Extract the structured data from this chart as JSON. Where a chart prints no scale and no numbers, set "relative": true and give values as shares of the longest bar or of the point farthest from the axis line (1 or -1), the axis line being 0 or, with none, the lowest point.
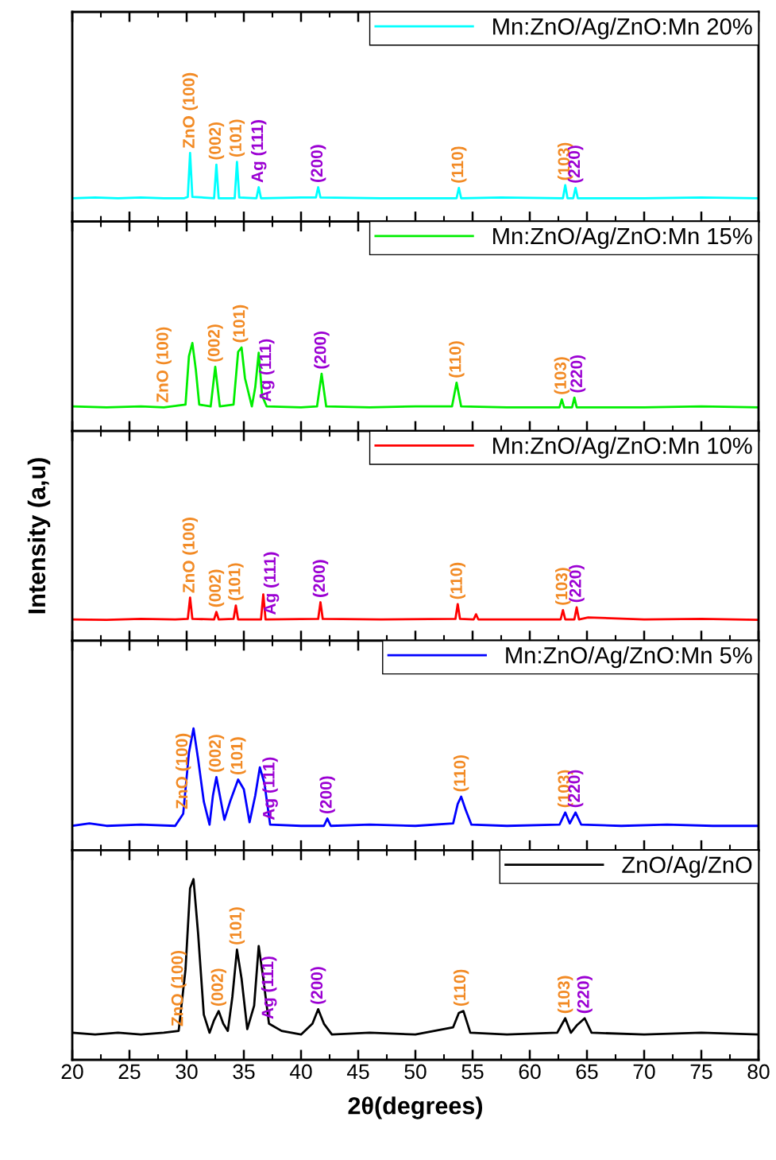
{
  "chart_data": [
    {
      "type": "line",
      "relative": true,
      "xlim": [
        20,
        80
      ],
      "xticks": [
        20,
        25,
        30,
        35,
        40,
        45,
        50,
        55,
        60,
        65,
        70,
        75,
        80
      ],
      "tick_labels": false,
      "legend": "top right",
      "grid": false,
      "series": [
        {
          "name": "Mn:ZnO/Ag/ZnO:Mn 20%",
          "color": "#00ffff",
          "x": [
            20,
            22,
            24,
            26,
            28,
            29.8,
            30.1,
            30.3,
            30.5,
            32.4,
            32.6,
            32.8,
            34.2,
            34.4,
            34.6,
            36.1,
            36.3,
            36.5,
            40,
            41.3,
            41.5,
            41.7,
            47,
            53.6,
            53.8,
            54,
            57.5,
            62.9,
            63.1,
            63.3,
            63.8,
            64,
            64.2,
            70,
            75,
            80
          ],
          "values": [
            0.34,
            0.35,
            0.34,
            0.35,
            0.34,
            0.34,
            0.36,
            1,
            0.36,
            0.34,
            0.83,
            0.34,
            0.34,
            0.87,
            0.35,
            0.34,
            0.5,
            0.34,
            0.35,
            0.35,
            0.5,
            0.35,
            0.34,
            0.34,
            0.49,
            0.34,
            0.35,
            0.34,
            0.53,
            0.34,
            0.34,
            0.49,
            0.34,
            0.34,
            0.35,
            0.34
          ]
        }
      ],
      "annotations": [
        {
          "text": "ZnO (100)",
          "x": 30.3,
          "y": 1
        },
        {
          "text": "(002)",
          "x": 32.6,
          "y": 0.83
        },
        {
          "text": "(101)",
          "x": 34.4,
          "y": 0.87
        },
        {
          "text": "Ag (111)",
          "x": 36.3,
          "y": 0.5
        },
        {
          "text": "(200)",
          "x": 41.5,
          "y": 0.5
        },
        {
          "text": "(110)",
          "x": 53.8,
          "y": 0.49
        },
        {
          "text": "(103)",
          "x": 63.1,
          "y": 0.53
        },
        {
          "text": "(220)",
          "x": 64.0,
          "y": 0.49
        }
      ]
    },
    {
      "type": "line",
      "relative": true,
      "xlim": [
        20,
        80
      ],
      "xticks": [
        20,
        25,
        30,
        35,
        40,
        45,
        50,
        55,
        60,
        65,
        70,
        75,
        80
      ],
      "tick_labels": false,
      "legend": "top right",
      "grid": false,
      "series": [
        {
          "name": "Mn:ZnO/Ag/ZnO:Mn 15%",
          "color": "#00ee00",
          "x": [
            20,
            23,
            26,
            28,
            29.9,
            30.2,
            30.5,
            30.8,
            31.1,
            32.1,
            32.5,
            32.9,
            34.1,
            34.5,
            34.8,
            35.1,
            35.7,
            36.0,
            36.3,
            36.6,
            37,
            40,
            41.4,
            41.8,
            42.2,
            46,
            50,
            53.2,
            53.6,
            54,
            58,
            62.6,
            62.8,
            63,
            63.7,
            63.9,
            64.1,
            70,
            75,
            80
          ],
          "values": [
            0.28,
            0.27,
            0.28,
            0.27,
            0.3,
            0.85,
            1,
            0.7,
            0.3,
            0.28,
            0.73,
            0.28,
            0.3,
            0.9,
            0.95,
            0.6,
            0.28,
            0.5,
            0.89,
            0.4,
            0.28,
            0.27,
            0.28,
            0.65,
            0.28,
            0.27,
            0.28,
            0.28,
            0.55,
            0.28,
            0.27,
            0.27,
            0.36,
            0.27,
            0.27,
            0.38,
            0.27,
            0.27,
            0.28,
            0.27
          ]
        }
      ],
      "annotations": [
        {
          "text": "ZnO (100)",
          "x": 28,
          "y": 0.27
        },
        {
          "text": "(002)",
          "x": 32.5,
          "y": 0.73
        },
        {
          "text": "(101)",
          "x": 34.7,
          "y": 0.95
        },
        {
          "text": "Ag (111)",
          "x": 37.0,
          "y": 0.28
        },
        {
          "text": "(200)",
          "x": 41.8,
          "y": 0.65
        },
        {
          "text": "(110)",
          "x": 53.6,
          "y": 0.55
        },
        {
          "text": "(103)",
          "x": 62.8,
          "y": 0.36
        },
        {
          "text": "(220)",
          "x": 64.2,
          "y": 0.38
        }
      ]
    },
    {
      "type": "line",
      "relative": true,
      "xlim": [
        20,
        80
      ],
      "xticks": [
        20,
        25,
        30,
        35,
        40,
        45,
        50,
        55,
        60,
        65,
        70,
        75,
        80
      ],
      "tick_labels": false,
      "legend": "top right",
      "grid": false,
      "ylabel": "Intensity (a,u)",
      "series": [
        {
          "name": "Mn:ZnO/Ag/ZnO:Mn 10%",
          "color": "#ff0000",
          "x": [
            20,
            23,
            26,
            29,
            30.1,
            30.3,
            30.5,
            32.4,
            32.6,
            32.8,
            34.1,
            34.3,
            34.5,
            36.5,
            36.7,
            36.9,
            41.5,
            41.7,
            41.9,
            47,
            53.5,
            53.7,
            53.9,
            55.1,
            55.3,
            55.5,
            62.7,
            62.9,
            63.1,
            63.9,
            64.1,
            64.3,
            65.1,
            70,
            75,
            80
          ],
          "values": [
            0.46,
            0.45,
            0.47,
            0.46,
            0.47,
            0.93,
            0.47,
            0.46,
            0.62,
            0.46,
            0.47,
            0.76,
            0.46,
            0.46,
            1,
            0.46,
            0.47,
            0.83,
            0.47,
            0.46,
            0.47,
            0.79,
            0.47,
            0.46,
            0.57,
            0.46,
            0.46,
            0.66,
            0.46,
            0.46,
            0.72,
            0.46,
            0.5,
            0.46,
            0.47,
            0.45
          ]
        }
      ],
      "annotations": [
        {
          "text": "ZnO (100)",
          "x": 30.3,
          "y": 0.93
        },
        {
          "text": "(002)",
          "x": 32.6,
          "y": 0.62
        },
        {
          "text": "(101)",
          "x": 34.3,
          "y": 0.76
        },
        {
          "text": "Ag (111)",
          "x": 37.4,
          "y": 0.46
        },
        {
          "text": "(200)",
          "x": 41.7,
          "y": 0.83
        },
        {
          "text": "(110)",
          "x": 53.7,
          "y": 0.79
        },
        {
          "text": "(103)",
          "x": 62.9,
          "y": 0.66
        },
        {
          "text": "(220)",
          "x": 64.1,
          "y": 0.72
        }
      ]
    },
    {
      "type": "line",
      "relative": true,
      "xlim": [
        20,
        80
      ],
      "xticks": [
        20,
        25,
        30,
        35,
        40,
        45,
        50,
        55,
        60,
        65,
        70,
        75,
        80
      ],
      "tick_labels": false,
      "legend": "top right",
      "grid": false,
      "series": [
        {
          "name": "Mn:ZnO/Ag/ZnO:Mn 5%",
          "color": "#0000ff",
          "x": [
            20,
            21.5,
            23,
            26,
            29,
            29.7,
            30.2,
            30.6,
            31.0,
            31.5,
            32.0,
            32.3,
            32.6,
            32.9,
            33.3,
            33.8,
            34.5,
            35.0,
            35.5,
            36.0,
            36.4,
            36.8,
            37.3,
            40,
            42.0,
            42.3,
            42.6,
            46,
            50,
            53.3,
            53.7,
            54.0,
            54.4,
            54.9,
            58,
            62.6,
            63.1,
            63.5,
            64.0,
            64.5,
            68,
            72,
            76,
            80
          ],
          "values": [
            0.2,
            0.22,
            0.2,
            0.21,
            0.2,
            0.3,
            0.8,
            1,
            0.75,
            0.4,
            0.21,
            0.45,
            0.6,
            0.45,
            0.25,
            0.4,
            0.58,
            0.5,
            0.23,
            0.45,
            0.68,
            0.55,
            0.21,
            0.2,
            0.2,
            0.26,
            0.2,
            0.21,
            0.2,
            0.22,
            0.38,
            0.44,
            0.33,
            0.21,
            0.2,
            0.21,
            0.31,
            0.22,
            0.31,
            0.21,
            0.2,
            0.21,
            0.2,
            0.2
          ]
        }
      ],
      "annotations": [
        {
          "text": "ZnO (100)",
          "x": 29.7,
          "y": 0.3
        },
        {
          "text": "(002)",
          "x": 32.6,
          "y": 0.6
        },
        {
          "text": "(101)",
          "x": 34.5,
          "y": 0.58
        },
        {
          "text": "Ag (111)",
          "x": 37.3,
          "y": 0.21
        },
        {
          "text": "(200)",
          "x": 42.3,
          "y": 0.26
        },
        {
          "text": "(110)",
          "x": 54.0,
          "y": 0.44
        },
        {
          "text": "(103)",
          "x": 63.1,
          "y": 0.31
        },
        {
          "text": "(220)",
          "x": 64.0,
          "y": 0.31
        }
      ]
    },
    {
      "type": "line",
      "relative": true,
      "xlim": [
        20,
        80
      ],
      "xticks": [
        20,
        25,
        30,
        35,
        40,
        45,
        50,
        55,
        60,
        65,
        70,
        75,
        80
      ],
      "tick_labels": "x",
      "legend": "top right",
      "grid": false,
      "xlabel": "2θ(degrees)",
      "series": [
        {
          "name": "ZnO/Ag/ZnO",
          "color": "#000000",
          "x": [
            20,
            22,
            24,
            26,
            28,
            29.3,
            29.9,
            30.3,
            30.6,
            31.0,
            31.5,
            32.0,
            32.4,
            32.8,
            33.2,
            33.6,
            34.0,
            34.4,
            34.8,
            35.3,
            35.9,
            36.3,
            36.7,
            37.2,
            38.3,
            40,
            41.0,
            41.5,
            42.0,
            42.7,
            46,
            50,
            53.3,
            53.8,
            54.2,
            54.8,
            58,
            62.4,
            63.1,
            63.6,
            64.1,
            64.8,
            65.4,
            70,
            75,
            80
          ],
          "values": [
            0.15,
            0.14,
            0.15,
            0.14,
            0.15,
            0.16,
            0.5,
            0.95,
            1,
            0.7,
            0.25,
            0.15,
            0.22,
            0.27,
            0.2,
            0.16,
            0.35,
            0.61,
            0.45,
            0.17,
            0.3,
            0.63,
            0.45,
            0.2,
            0.16,
            0.14,
            0.2,
            0.28,
            0.2,
            0.14,
            0.15,
            0.14,
            0.18,
            0.26,
            0.27,
            0.15,
            0.14,
            0.15,
            0.23,
            0.15,
            0.19,
            0.23,
            0.15,
            0.14,
            0.15,
            0.14
          ]
        }
      ],
      "annotations": [
        {
          "text": "ZnO (100)",
          "x": 29.3,
          "y": 0.16
        },
        {
          "text": "(002)",
          "x": 32.8,
          "y": 0.27
        },
        {
          "text": "(101)",
          "x": 34.4,
          "y": 0.61
        },
        {
          "text": "Ag (111)",
          "x": 37.2,
          "y": 0.2
        },
        {
          "text": "(200)",
          "x": 41.5,
          "y": 0.28
        },
        {
          "text": "(110)",
          "x": 54.0,
          "y": 0.27
        },
        {
          "text": "(103)",
          "x": 63.1,
          "y": 0.23
        },
        {
          "text": "(220)",
          "x": 64.8,
          "y": 0.23
        }
      ]
    }
  ]
}
